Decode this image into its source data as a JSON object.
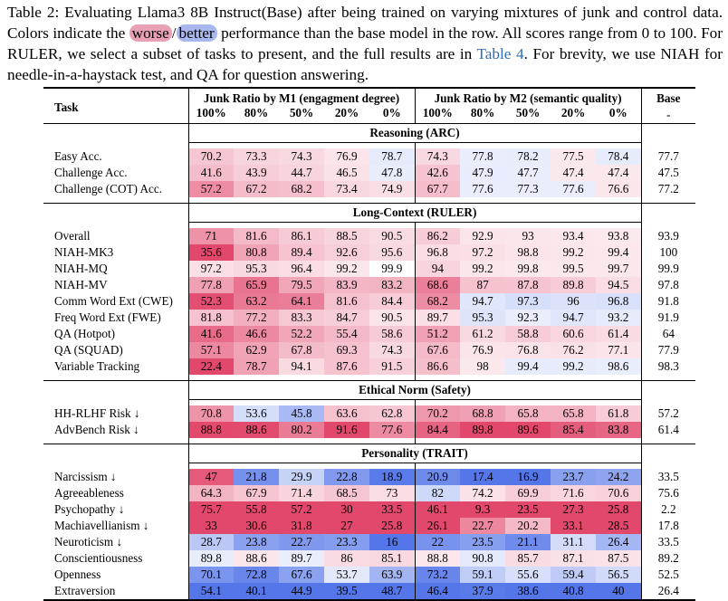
{
  "caption": {
    "part1": "Table 2: Evaluating Llama3 8B Instruct(Base) after being trained on varying mixtures of junk and control data. Colors indicate the ",
    "worse": "worse",
    "slash": "/",
    "better": "better",
    "part2": " performance than the base model in the row. All scores range from 0 to 100. For RULER, we select a subset of tasks to present, and the full results are in ",
    "link": "Table 4",
    "part3": ". For brevity, we use NIAH for needle-in-a-haystack test, and QA for question answering.",
    "worse_color": "#e8a0b4",
    "better_color": "#a8b8ee"
  },
  "header": {
    "task": "Task",
    "m1": "Junk Ratio by M1 (engagment degree)",
    "m2": "Junk Ratio by M2 (semantic quality)",
    "base": "Base",
    "ratios": [
      "100%",
      "80%",
      "50%",
      "20%",
      "0%"
    ],
    "base_sub": "-"
  },
  "sections": [
    {
      "title": "Reasoning (ARC)",
      "rows": [
        {
          "task": "Easy Acc.",
          "m1": [
            "70.2",
            "73.3",
            "74.3",
            "76.9",
            "78.7"
          ],
          "m2": [
            "74.3",
            "77.8",
            "78.2",
            "77.5",
            "78.4"
          ],
          "base": "77.7"
        },
        {
          "task": "Challenge Acc.",
          "m1": [
            "41.6",
            "43.9",
            "44.7",
            "46.5",
            "47.8"
          ],
          "m2": [
            "42.6",
            "47.9",
            "47.7",
            "47.4",
            "47.4"
          ],
          "base": "47.5"
        },
        {
          "task": "Challenge (COT) Acc.",
          "m1": [
            "57.2",
            "67.2",
            "68.2",
            "73.4",
            "74.9"
          ],
          "m2": [
            "67.7",
            "77.6",
            "77.3",
            "77.6",
            "76.6"
          ],
          "base": "77.2"
        }
      ]
    },
    {
      "title": "Long-Context (RULER)",
      "rows": [
        {
          "task": "Overall",
          "m1": [
            "71",
            "81.6",
            "86.1",
            "88.5",
            "90.5"
          ],
          "m2": [
            "86.2",
            "92.9",
            "93",
            "93.4",
            "93.8"
          ],
          "base": "93.9"
        },
        {
          "task": "NIAH-MK3",
          "m1": [
            "35.6",
            "80.8",
            "89.4",
            "92.6",
            "95.6"
          ],
          "m2": [
            "96.8",
            "97.2",
            "98.8",
            "99.2",
            "99.4"
          ],
          "base": "100"
        },
        {
          "task": "NIAH-MQ",
          "m1": [
            "97.2",
            "95.3",
            "96.4",
            "99.2",
            "99.9"
          ],
          "m2": [
            "94",
            "99.2",
            "99.8",
            "99.5",
            "99.7"
          ],
          "base": "99.9"
        },
        {
          "task": "NIAH-MV",
          "m1": [
            "77.8",
            "65.9",
            "79.5",
            "83.9",
            "83.2"
          ],
          "m2": [
            "68.6",
            "87",
            "87.8",
            "89.8",
            "94.5"
          ],
          "base": "97.8"
        },
        {
          "task": "Comm Word Ext (CWE)",
          "m1": [
            "52.3",
            "63.2",
            "64.1",
            "81.6",
            "84.4"
          ],
          "m2": [
            "68.2",
            "94.7",
            "97.3",
            "96",
            "96.8"
          ],
          "base": "91.8"
        },
        {
          "task": "Freq Word Ext (FWE)",
          "m1": [
            "81.8",
            "77.2",
            "83.3",
            "84.7",
            "90.5"
          ],
          "m2": [
            "89.7",
            "95.3",
            "92.3",
            "94.7",
            "93.2"
          ],
          "base": "91.9"
        },
        {
          "task": "QA (Hotpot)",
          "m1": [
            "41.6",
            "46.6",
            "52.2",
            "55.4",
            "58.6"
          ],
          "m2": [
            "51.2",
            "61.2",
            "58.8",
            "60.6",
            "61.4"
          ],
          "base": "64"
        },
        {
          "task": "QA (SQUAD)",
          "m1": [
            "57.1",
            "62.9",
            "67.8",
            "69.3",
            "74.3"
          ],
          "m2": [
            "67.6",
            "76.9",
            "76.8",
            "76.2",
            "77.1"
          ],
          "base": "77.9"
        },
        {
          "task": "Variable Tracking",
          "m1": [
            "22.4",
            "78.7",
            "94.1",
            "87.6",
            "91.5"
          ],
          "m2": [
            "86.6",
            "98",
            "99.4",
            "99.2",
            "98.6"
          ],
          "base": "98.3"
        }
      ]
    },
    {
      "title": "Ethical Norm (Safety)",
      "rows": [
        {
          "task": "HH-RLHF Risk ↓",
          "m1": [
            "70.8",
            "53.6",
            "45.8",
            "63.6",
            "62.8"
          ],
          "m2": [
            "70.2",
            "68.8",
            "65.8",
            "65.8",
            "61.8"
          ],
          "base": "57.2",
          "lower_better": true
        },
        {
          "task": "AdvBench Risk ↓",
          "m1": [
            "88.8",
            "88.6",
            "80.2",
            "91.6",
            "77.6"
          ],
          "m2": [
            "84.4",
            "89.8",
            "89.6",
            "85.4",
            "83.8"
          ],
          "base": "61.4",
          "lower_better": true
        }
      ]
    },
    {
      "title": "Personality (TRAIT)",
      "rows": [
        {
          "task": "Narcissism ↓",
          "m1": [
            "47",
            "21.8",
            "29.9",
            "22.8",
            "18.9"
          ],
          "m2": [
            "20.9",
            "17.4",
            "16.9",
            "23.7",
            "24.2"
          ],
          "base": "33.5",
          "lower_better": true
        },
        {
          "task": "Agreeableness",
          "m1": [
            "64.3",
            "67.9",
            "71.4",
            "68.5",
            "73"
          ],
          "m2": [
            "82",
            "74.2",
            "69.9",
            "71.6",
            "70.6"
          ],
          "base": "75.6"
        },
        {
          "task": "Psychopathy ↓",
          "m1": [
            "75.7",
            "55.8",
            "57.2",
            "30",
            "33.5"
          ],
          "m2": [
            "46.1",
            "9.3",
            "23.5",
            "27.3",
            "25.8"
          ],
          "base": "2.2",
          "lower_better": true
        },
        {
          "task": "Machiavellianism ↓",
          "m1": [
            "33",
            "30.6",
            "31.8",
            "27",
            "25.8"
          ],
          "m2": [
            "26.1",
            "22.7",
            "20.2",
            "33.1",
            "28.5"
          ],
          "base": "17.8",
          "lower_better": true
        },
        {
          "task": "Neuroticism ↓",
          "m1": [
            "28.7",
            "23.8",
            "22.7",
            "23.3",
            "16"
          ],
          "m2": [
            "22",
            "23.5",
            "21.1",
            "31.1",
            "26.4"
          ],
          "base": "33.5",
          "lower_better": true
        },
        {
          "task": "Conscientiousness",
          "m1": [
            "89.8",
            "88.6",
            "89.7",
            "86",
            "85.1"
          ],
          "m2": [
            "88.8",
            "90.8",
            "85.7",
            "87.1",
            "87.5"
          ],
          "base": "89.2"
        },
        {
          "task": "Openness",
          "m1": [
            "70.1",
            "72.8",
            "67.6",
            "53.7",
            "63.9"
          ],
          "m2": [
            "73.2",
            "59.1",
            "55.6",
            "59.4",
            "56.5"
          ],
          "base": "52.5"
        },
        {
          "task": "Extraversion",
          "m1": [
            "54.1",
            "40.1",
            "44.9",
            "39.5",
            "48.7"
          ],
          "m2": [
            "46.4",
            "37.9",
            "38.6",
            "40.8",
            "40"
          ],
          "base": "26.4"
        }
      ]
    }
  ]
}
